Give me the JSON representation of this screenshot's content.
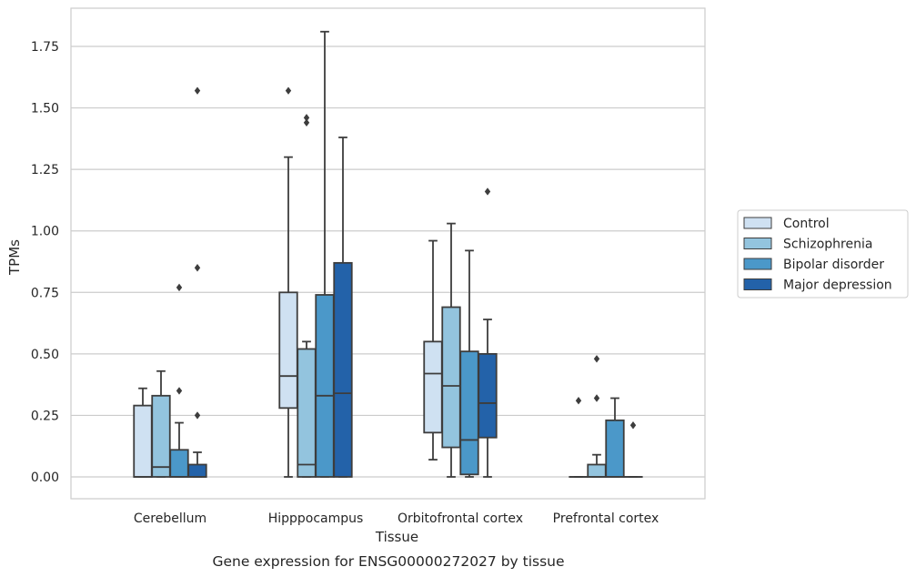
{
  "chart_data": {
    "type": "boxplot",
    "title": "Gene expression for ENSG00000272027 by tissue",
    "xlabel": "Tissue",
    "ylabel": "TPMs",
    "ylim": [
      -0.09,
      1.9
    ],
    "yticks": [
      0.0,
      0.25,
      0.5,
      0.75,
      1.0,
      1.25,
      1.5,
      1.75
    ],
    "ytick_labels": [
      "0.00",
      "0.25",
      "0.50",
      "0.75",
      "1.00",
      "1.25",
      "1.50",
      "1.75"
    ],
    "grid": "horizontal",
    "legend_position": "right",
    "categories": [
      "Cerebellum",
      "Hipppocampus",
      "Orbitofrontal cortex",
      "Prefrontal cortex"
    ],
    "series": [
      {
        "name": "Control",
        "color": "#cfe1f2",
        "boxes": [
          {
            "whislo": 0.0,
            "q1": 0.0,
            "med": 0.0,
            "q3": 0.29,
            "whishi": 0.36,
            "fliers": []
          },
          {
            "whislo": 0.0,
            "q1": 0.28,
            "med": 0.41,
            "q3": 0.75,
            "whishi": 1.3,
            "fliers": [
              1.57
            ]
          },
          {
            "whislo": 0.07,
            "q1": 0.18,
            "med": 0.42,
            "q3": 0.55,
            "whishi": 0.96,
            "fliers": []
          },
          {
            "whislo": 0.0,
            "q1": 0.0,
            "med": 0.0,
            "q3": 0.0,
            "whishi": 0.0,
            "fliers": [
              0.31
            ]
          }
        ]
      },
      {
        "name": "Schizophrenia",
        "color": "#93c4de",
        "boxes": [
          {
            "whislo": 0.0,
            "q1": 0.0,
            "med": 0.04,
            "q3": 0.33,
            "whishi": 0.43,
            "fliers": []
          },
          {
            "whislo": 0.0,
            "q1": 0.0,
            "med": 0.05,
            "q3": 0.52,
            "whishi": 0.55,
            "fliers": [
              1.44,
              1.46
            ]
          },
          {
            "whislo": 0.0,
            "q1": 0.12,
            "med": 0.37,
            "q3": 0.69,
            "whishi": 1.03,
            "fliers": []
          },
          {
            "whislo": 0.0,
            "q1": 0.0,
            "med": 0.0,
            "q3": 0.05,
            "whishi": 0.09,
            "fliers": [
              0.32,
              0.48
            ]
          }
        ]
      },
      {
        "name": "Bipolar disorder",
        "color": "#4b98c9",
        "boxes": [
          {
            "whislo": 0.0,
            "q1": 0.0,
            "med": 0.0,
            "q3": 0.11,
            "whishi": 0.22,
            "fliers": [
              0.35,
              0.77
            ]
          },
          {
            "whislo": 0.0,
            "q1": 0.0,
            "med": 0.33,
            "q3": 0.74,
            "whishi": 1.81,
            "fliers": []
          },
          {
            "whislo": 0.0,
            "q1": 0.01,
            "med": 0.15,
            "q3": 0.51,
            "whishi": 0.92,
            "fliers": []
          },
          {
            "whislo": 0.0,
            "q1": 0.0,
            "med": 0.0,
            "q3": 0.23,
            "whishi": 0.32,
            "fliers": []
          }
        ]
      },
      {
        "name": "Major depression",
        "color": "#2362a9",
        "boxes": [
          {
            "whislo": 0.0,
            "q1": 0.0,
            "med": 0.0,
            "q3": 0.05,
            "whishi": 0.1,
            "fliers": [
              0.25,
              0.85,
              1.57
            ]
          },
          {
            "whislo": 0.0,
            "q1": 0.0,
            "med": 0.34,
            "q3": 0.87,
            "whishi": 1.38,
            "fliers": []
          },
          {
            "whislo": 0.0,
            "q1": 0.16,
            "med": 0.3,
            "q3": 0.5,
            "whishi": 0.64,
            "fliers": [
              1.16
            ]
          },
          {
            "whislo": 0.0,
            "q1": 0.0,
            "med": 0.0,
            "q3": 0.0,
            "whishi": 0.0,
            "fliers": [
              0.21
            ]
          }
        ]
      }
    ]
  }
}
